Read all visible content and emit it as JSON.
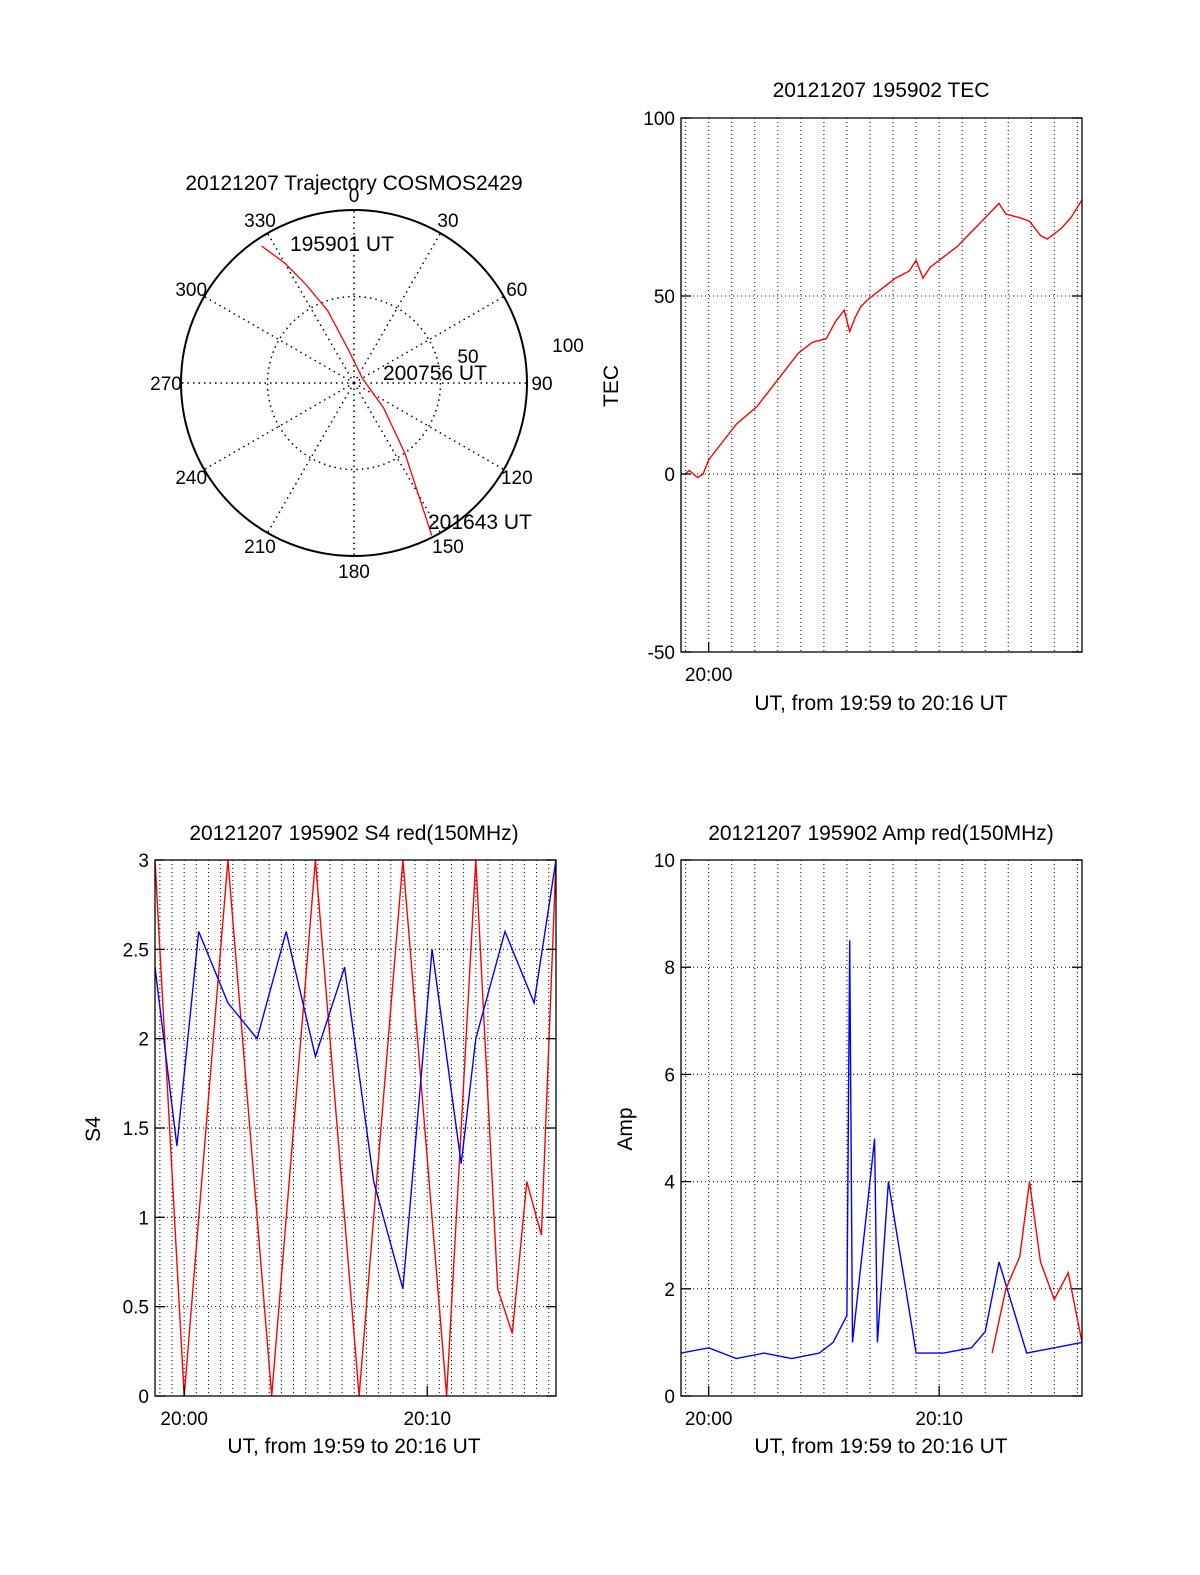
{
  "colors": {
    "red": "#ff0000",
    "blue": "#0000ff",
    "axis": "#000000"
  },
  "polar": {
    "title": "20121207 Trajectory COSMOS2429",
    "azimuth_labels": [
      "0",
      "30",
      "60",
      "90",
      "120",
      "150",
      "180",
      "210",
      "240",
      "270",
      "300",
      "330"
    ],
    "azimuths": [
      0,
      30,
      60,
      90,
      120,
      150,
      180,
      210,
      240,
      270,
      300,
      330
    ],
    "radial_labels": [
      "50",
      "100"
    ],
    "start_label": "195901 UT",
    "mid_label": "200756 UT",
    "end_label": "201643 UT",
    "trajectory": [
      {
        "az": 326,
        "zd": 86
      },
      {
        "az": 330,
        "zd": 72
      },
      {
        "az": 334,
        "zd": 57
      },
      {
        "az": 340,
        "zd": 40
      },
      {
        "az": 350,
        "zd": 18
      },
      {
        "az": 60,
        "zd": 5
      },
      {
        "az": 130,
        "zd": 20
      },
      {
        "az": 144,
        "zd": 45
      },
      {
        "az": 150,
        "zd": 67
      },
      {
        "az": 153,
        "zd": 89
      }
    ]
  },
  "chart_data": [
    {
      "type": "line",
      "title": "20121207 195902 TEC",
      "xlabel": "UT, from 19:59 to 20:16 UT",
      "ylabel": "TEC",
      "xlim": [
        19.98,
        20.27
      ],
      "ylim": [
        -50,
        100
      ],
      "xticks": [
        {
          "value": 20.0,
          "label": "20:00"
        }
      ],
      "yticks": [
        {
          "value": -50,
          "label": "-50"
        },
        {
          "value": 0,
          "label": "0"
        },
        {
          "value": 50,
          "label": "50"
        },
        {
          "value": 100,
          "label": "100"
        }
      ],
      "series": [
        {
          "color": "#ff0000",
          "x": [
            19.983,
            19.986,
            19.992,
            19.996,
            20.0,
            20.01,
            20.02,
            20.035,
            20.045,
            20.055,
            20.065,
            20.075,
            20.085,
            20.092,
            20.098,
            20.102,
            20.106,
            20.11,
            20.115,
            20.125,
            20.135,
            20.145,
            20.15,
            20.155,
            20.16,
            20.17,
            20.18,
            20.19,
            20.2,
            20.21,
            20.215,
            20.225,
            20.232,
            20.24,
            20.245,
            20.255,
            20.262,
            20.27
          ],
          "y": [
            0,
            1,
            -1,
            0,
            4,
            9,
            14,
            19,
            24,
            29,
            34,
            37,
            38,
            43,
            46,
            40,
            44,
            47,
            49,
            52,
            55,
            57,
            60,
            55,
            58,
            61,
            64,
            68,
            72,
            76,
            73,
            72,
            71,
            67,
            66,
            69,
            72,
            77
          ]
        }
      ]
    },
    {
      "type": "line",
      "title": "20121207 195902 S4 red(150MHz)",
      "xlabel": "UT, from 19:59 to 20:16 UT",
      "ylabel": "S4",
      "xlim": [
        19.98,
        20.255
      ],
      "ylim": [
        0,
        3
      ],
      "xticks": [
        {
          "value": 20.0,
          "label": "20:00"
        },
        {
          "value": 20.1667,
          "label": "20:10"
        }
      ],
      "yticks": [
        {
          "value": 0,
          "label": "0"
        },
        {
          "value": 0.5,
          "label": "0.5"
        },
        {
          "value": 1,
          "label": "1"
        },
        {
          "value": 1.5,
          "label": "1.5"
        },
        {
          "value": 2,
          "label": "2"
        },
        {
          "value": 2.5,
          "label": "2.5"
        },
        {
          "value": 3,
          "label": "3"
        }
      ],
      "series": [
        {
          "color": "#ff0000",
          "x": [
            19.98,
            20.0,
            20.03,
            20.06,
            20.09,
            20.12,
            20.15,
            20.18,
            20.2,
            20.215,
            20.225,
            20.235,
            20.245,
            20.255
          ],
          "y": [
            3,
            0,
            3,
            0,
            3,
            0,
            3,
            0,
            3,
            0.6,
            0.35,
            1.2,
            0.9,
            3
          ]
        },
        {
          "color": "#0000ff",
          "x": [
            19.98,
            19.995,
            20.01,
            20.03,
            20.05,
            20.07,
            20.09,
            20.11,
            20.13,
            20.15,
            20.17,
            20.19,
            20.2,
            20.22,
            20.24,
            20.255
          ],
          "y": [
            2.4,
            1.4,
            2.6,
            2.2,
            2.0,
            2.6,
            1.9,
            2.4,
            1.2,
            0.6,
            2.5,
            1.3,
            2.0,
            2.6,
            2.2,
            3
          ]
        }
      ]
    },
    {
      "type": "line",
      "title": "20121207 195902 Amp red(150MHz)",
      "xlabel": "UT, from 19:59 to 20:16 UT",
      "ylabel": "Amp",
      "xlim": [
        19.98,
        20.27
      ],
      "ylim": [
        0,
        10
      ],
      "xticks": [
        {
          "value": 20.0,
          "label": "20:00"
        },
        {
          "value": 20.1667,
          "label": "20:10"
        }
      ],
      "yticks": [
        {
          "value": 0,
          "label": "0"
        },
        {
          "value": 2,
          "label": "2"
        },
        {
          "value": 4,
          "label": "4"
        },
        {
          "value": 6,
          "label": "6"
        },
        {
          "value": 8,
          "label": "8"
        },
        {
          "value": 10,
          "label": "10"
        }
      ],
      "series": [
        {
          "color": "#0000ff",
          "x": [
            19.98,
            20.0,
            20.02,
            20.04,
            20.06,
            20.08,
            20.09,
            20.1,
            20.102,
            20.104,
            20.12,
            20.122,
            20.13,
            20.15,
            20.17,
            20.19,
            20.2,
            20.21,
            20.23,
            20.25,
            20.27
          ],
          "y": [
            0.8,
            0.9,
            0.7,
            0.8,
            0.7,
            0.8,
            1.0,
            1.5,
            8.5,
            1.0,
            4.8,
            1.0,
            4.0,
            0.8,
            0.8,
            0.9,
            1.2,
            2.5,
            0.8,
            0.9,
            1.0
          ]
        },
        {
          "color": "#ff0000",
          "x": [
            20.205,
            20.215,
            20.225,
            20.232,
            20.24,
            20.25,
            20.26,
            20.27
          ],
          "y": [
            0.8,
            2.0,
            2.6,
            4.0,
            2.5,
            1.8,
            2.3,
            1.0
          ]
        }
      ]
    }
  ]
}
